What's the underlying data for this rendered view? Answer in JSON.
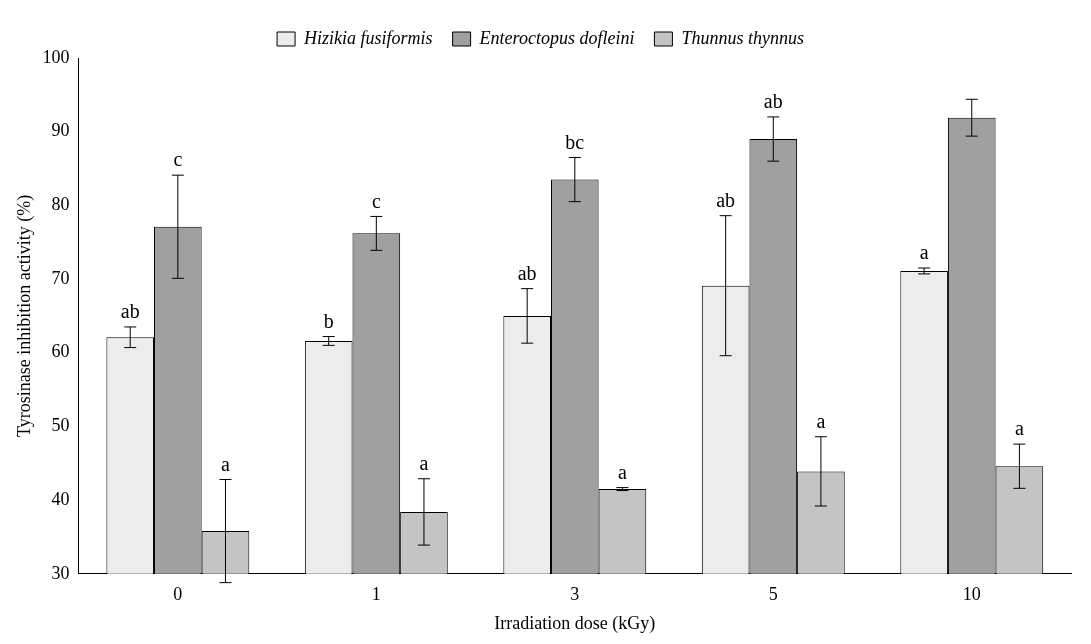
{
  "chart_data": {
    "type": "bar",
    "x_label": "Irradiation dose (kGy)",
    "y_label": "Tyrosinase inhibition activity (%)",
    "categories": [
      "0",
      "1",
      "3",
      "5",
      "10"
    ],
    "ylim": [
      30,
      100
    ],
    "yticks": [
      30,
      40,
      50,
      60,
      70,
      80,
      90,
      100
    ],
    "grid": false,
    "legend": "top",
    "series": [
      {
        "name": "Hizikia fusiformis",
        "color": "#ececec",
        "values": [
          62.1,
          61.6,
          65.0,
          69.1,
          71.1
        ],
        "errors": [
          1.4,
          0.6,
          3.7,
          9.5,
          0.4
        ],
        "letters": [
          "ab",
          "b",
          "ab",
          "ab",
          "a"
        ]
      },
      {
        "name": "Enteroctopus dofleini",
        "color": "#a0a0a0",
        "values": [
          77.1,
          76.2,
          83.5,
          89.0,
          91.9
        ],
        "errors": [
          7.0,
          2.3,
          3.0,
          3.0,
          2.5
        ],
        "letters": [
          "c",
          "c",
          "bc",
          "ab",
          null
        ]
      },
      {
        "name": "Thunnus thynnus",
        "color": "#c4c4c4",
        "values": [
          35.8,
          38.4,
          41.5,
          43.9,
          44.6
        ],
        "errors": [
          7.0,
          4.5,
          0.2,
          4.7,
          3.0
        ],
        "letters": [
          "a",
          "a",
          "a",
          "a",
          "a"
        ]
      }
    ]
  }
}
